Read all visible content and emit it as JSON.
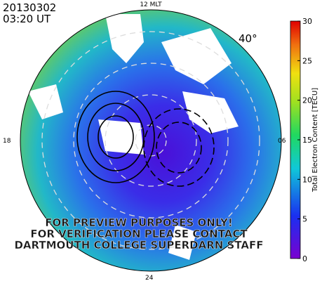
{
  "header": {
    "date": "20130302",
    "time": "03:20 UT"
  },
  "map": {
    "top_label": "12 MLT",
    "left_label": "18",
    "right_label": "06",
    "bottom_label": "24",
    "latitude_label": "40°",
    "watermark": [
      "FOR PREVIEW PURPOSES ONLY!",
      "FOR VERIFICATION PLEASE CONTACT",
      "DARTMOUTH COLLEGE SUPERDARN STAFF"
    ]
  },
  "colorbar": {
    "label": "Total Electron Content [TECU]",
    "ticks": [
      0,
      5,
      10,
      15,
      20,
      25,
      30
    ]
  }
}
